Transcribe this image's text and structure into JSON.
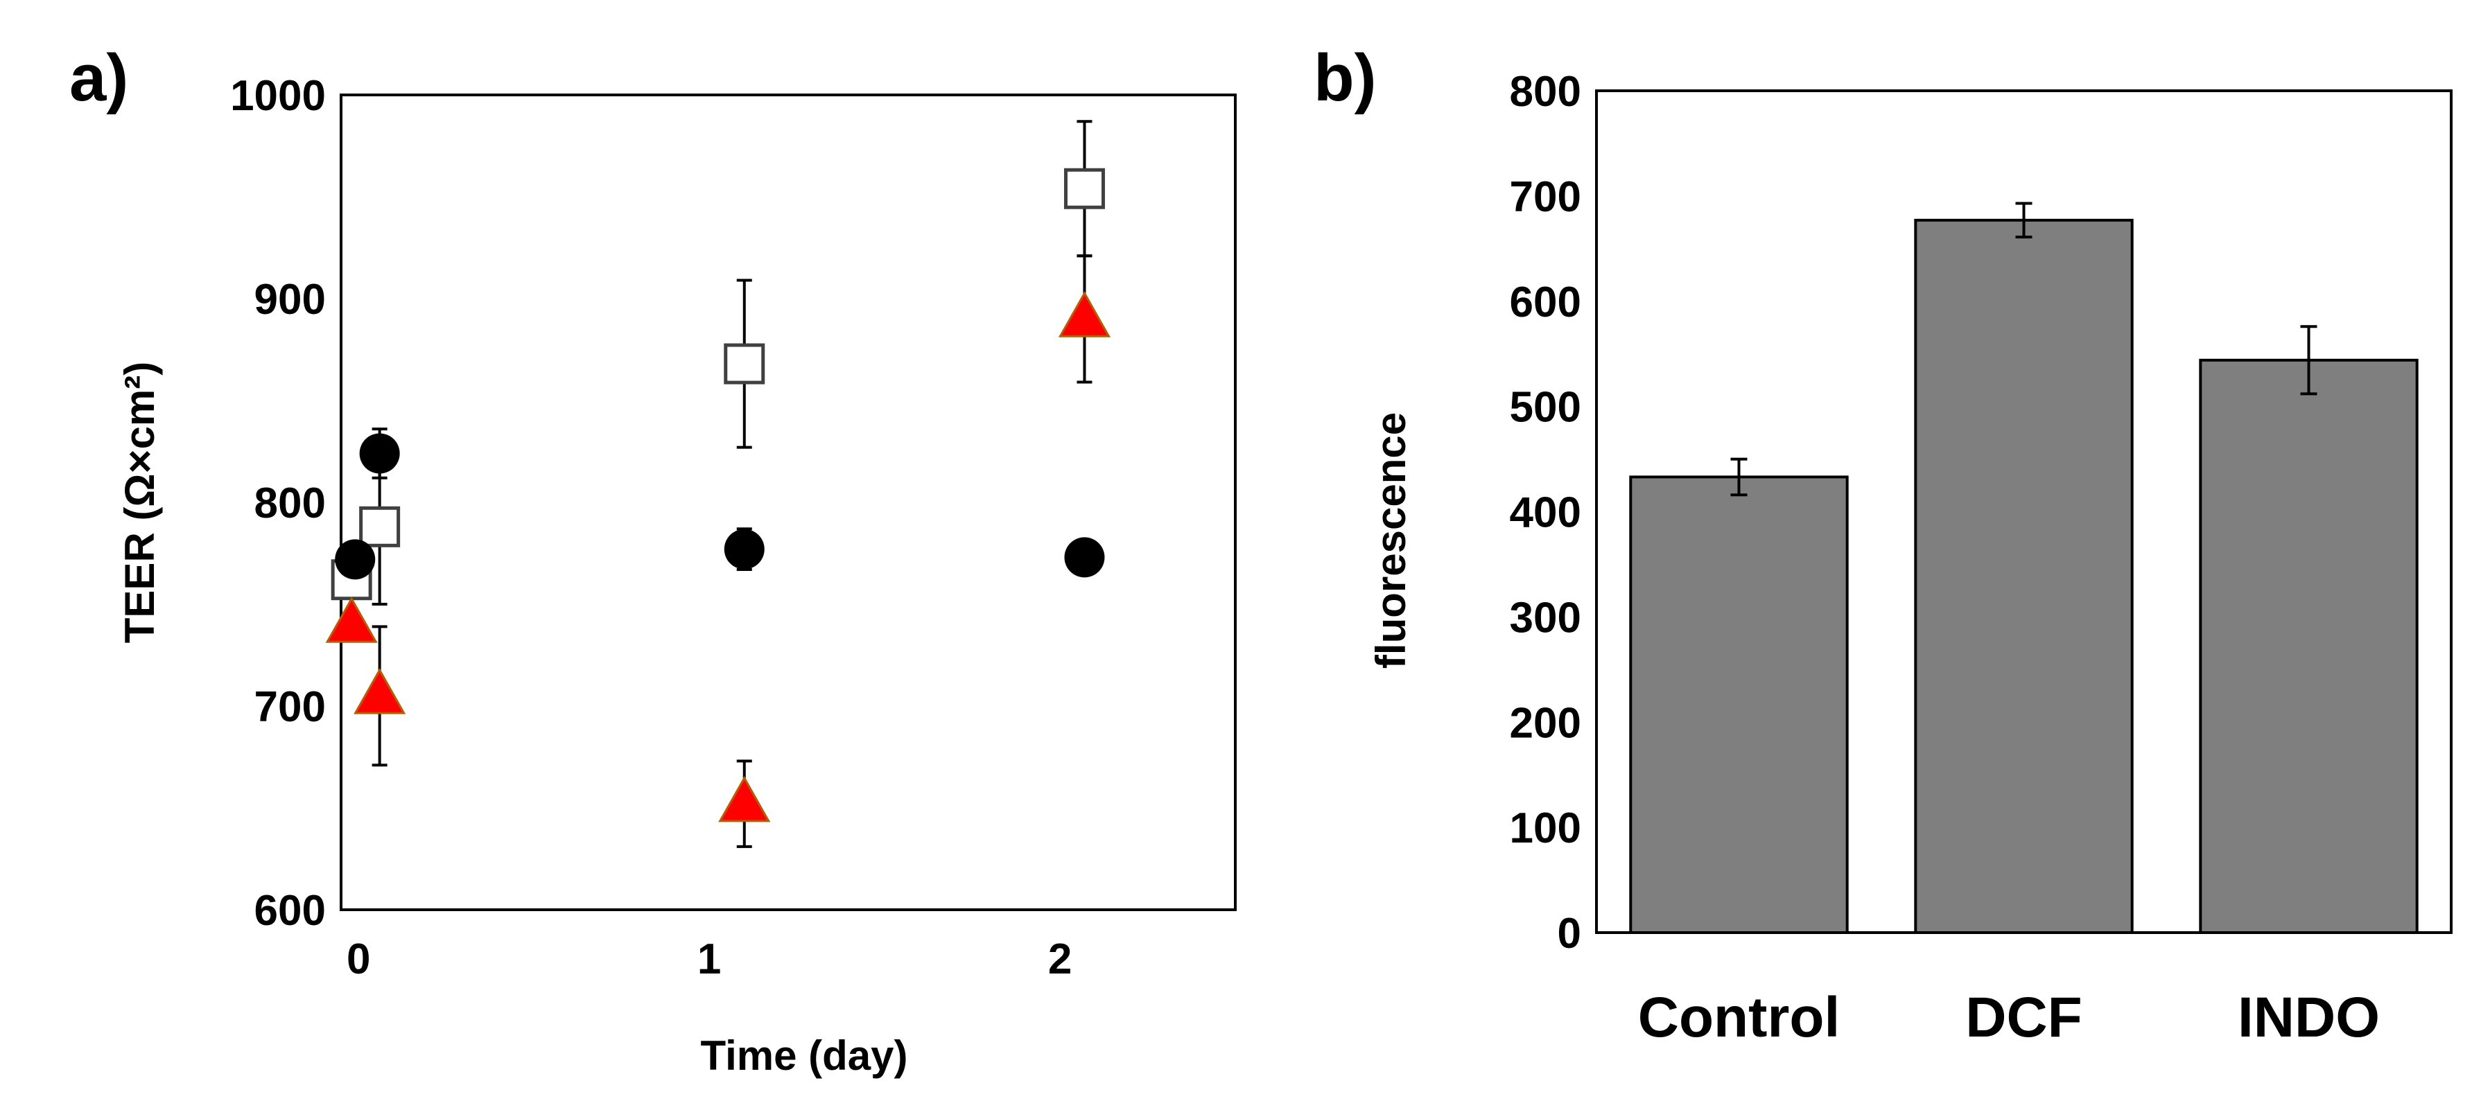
{
  "colors": {
    "background": "#ffffff",
    "axis": "#000000",
    "bar_fill": "#7f7f7f",
    "triangle_fill": "#ff0000",
    "triangle_edge": "#b45f06",
    "circle_fill": "#000000",
    "square_edge": "#404040"
  },
  "chart_data": [
    {
      "panel_label": "a)",
      "type": "scatter",
      "xlabel": "Time (day)",
      "ylabel": "TEER (Ω×cm²)",
      "ylim": [
        600,
        1000
      ],
      "xlim": [
        -0.05,
        2.5
      ],
      "yticks": [
        "600",
        "700",
        "800",
        "900",
        "1000"
      ],
      "xticks": [
        "0",
        "1",
        "2"
      ],
      "legend": "none",
      "series": [
        {
          "name": "open-square",
          "marker": "square",
          "points": [
            {
              "x": -0.02,
              "y": 762,
              "err": null
            },
            {
              "x": 0.06,
              "y": 788,
              "err": 38
            },
            {
              "x": 1.1,
              "y": 868,
              "err": 41
            },
            {
              "x": 2.07,
              "y": 954,
              "err": 33
            }
          ]
        },
        {
          "name": "filled-circle",
          "marker": "circle",
          "points": [
            {
              "x": -0.01,
              "y": 772,
              "err": null
            },
            {
              "x": 0.06,
              "y": 824,
              "err": 12
            },
            {
              "x": 1.1,
              "y": 777,
              "err": 10
            },
            {
              "x": 2.07,
              "y": 773,
              "err": null
            }
          ]
        },
        {
          "name": "red-triangle",
          "marker": "triangle",
          "points": [
            {
              "x": -0.02,
              "y": 740,
              "err": null
            },
            {
              "x": 0.06,
              "y": 705,
              "err": 34
            },
            {
              "x": 1.1,
              "y": 652,
              "err": 21
            },
            {
              "x": 2.07,
              "y": 890,
              "err": 31
            }
          ]
        }
      ]
    },
    {
      "panel_label": "b)",
      "type": "bar",
      "ylabel": "fluorescence",
      "xlabel": "",
      "ylim": [
        0,
        800
      ],
      "yticks": [
        "0",
        "100",
        "200",
        "300",
        "400",
        "500",
        "600",
        "700",
        "800"
      ],
      "categories": [
        "Control",
        "DCF",
        "INDO"
      ],
      "values": [
        433,
        677,
        544
      ],
      "errors": [
        17,
        16,
        32
      ],
      "legend": "none"
    }
  ]
}
